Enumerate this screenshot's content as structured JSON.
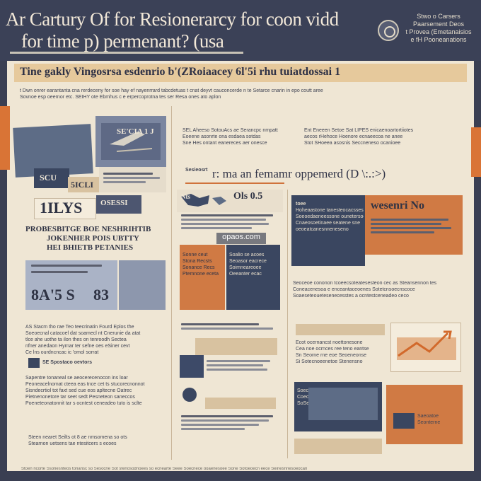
{
  "header": {
    "headline_line1": "Ar Cartury Of for  Resionerarcy for coon vidd",
    "headline_line2": "for time p)  permenant? (usa",
    "org_lines": [
      "Stwo o Carsers",
      "Paarsement Deos",
      "t Provea (Emetanaisios",
      "e fH Pooneanations"
    ]
  },
  "banner": {
    "title": "Tine gakly Vingosrsa esdenrio b'(ZRoiaacey 6l'5i rhu tuiatdossai 1"
  },
  "intro_lines": [
    "t Dwn onrer earantanta cna rerdeceny for soe hay ef nayenrrard tabcdetuas t cnat deyvt cauconcerde n te Setarce cnarin in epo coutt aree",
    "Sovnoe esp oeernor etc. SEIHY ote Ebmhus c e erpercoprotna tes ser Resa ones ato aplon"
  ],
  "left_column": {
    "label_box_1": "SE'CIA 1 J",
    "label_box_2": "SCU",
    "label_box_3": "5ICLI",
    "stat_big": "1ILYS",
    "stat_small": "OSESSI",
    "subhead_lines": [
      "PROBESBITGE BOE NESHRIHTIB",
      "JOKENHER POIS UBTTY",
      "HEI BHIETB PETANIES"
    ],
    "numbers_1": "8A'5 S",
    "numbers_2": "83",
    "body_lines": [
      "AS Stacm tho rae Teo teecrinatin Fourd Eplos the",
      "Soeoecnal catacoel dat soamecl nt Cnerunie da atat",
      "tlce ahe uothe ta ilon thes on tenroodh Sectea",
      "nfner anedaon Hyrnar ter sefne oes eSiner cevt",
      "Ce lns ourdncncac ic 'omol sorrat"
    ],
    "sub_caption": "SE Spostaco oevtors",
    "body_lines_2": [
      "Sapentre tonaneal se aeocerecenocon ins loar",
      "Peoneacelnomat cteea eas tnce cet ts stucorecnonnot",
      "Sisndecrtiol tot faxt sed cue eos apltecne Oatrec",
      "Pietnenonetore tar seet sedt Pesneteon saneccos",
      "Poeneteonatonnit tar s ocntest ceneadeo tuto is sclte"
    ],
    "closing_lines": [
      "Steen nearet Seilts ot 8 ae nmsomena so ots",
      "Stearnon uetsens tae ntesitcers s ecoes"
    ]
  },
  "top_right": {
    "lines": [
      "SEL Aheeso  SotouAcs ae Serancpc nmpatt",
      "Eoeene asonrte ona esdaea sotdas",
      "Sne Hes ontant eanereces aer onesce"
    ],
    "lines_right": [
      "Ent Eneeen  Setoe Sat LIPES  enicaenoartortiiotes",
      "aecos rHehoce Hoenore ecnaeecoa ne anee",
      "Stot SHoeea asosnis Seccneneso ocanioee"
    ]
  },
  "middle": {
    "section_heading": "r: ma an femamr oppemerd (D \\:.:>)",
    "small_label": "Sesieosrt",
    "stat_label": "Ols 0.5",
    "stat_prefix": "Nts",
    "orange_block_lines": [
      "Sonne ceut",
      "Stona Recsts",
      "Sonance Recs",
      "Ptemnone eceta"
    ],
    "navy_block_lines": [
      "Soalio se acoes",
      "Seoasor eacrece",
      "Soimneareoee",
      "Oeeanter ecac"
    ],
    "watermark": "opaos.com"
  },
  "right": {
    "callout_title": "wesenri No",
    "callout_tag": "toee",
    "callout_lines": [
      "Hoheaastone tanesteocacsses",
      "Soeoedaeneessone ounetersoe",
      "Cnaeosoetinaee seatene sne",
      "oeoeatcanesnneneseno"
    ],
    "paragraph_lines": [
      "Seoceoe cononon tcoeecsoteatesesteon cec as Steansennon tes",
      "Coneacenesoa e enceantaceoenes Sotetcnsoecnscoce",
      "Soaeseteouetesenecesstes a ocntestceneadeo ceco"
    ],
    "sub_items": [
      "Ecot ocernancst noettonesone",
      "Cea noe ocrnces ree teno eantse",
      "Sn Seorne rne eoe Seoeneonse",
      "Si Sotecnoeenetoe Stenensno"
    ],
    "bottom_box_lines": [
      "Soecnnes ocnoree",
      "Coecon nse e",
      "SoSeoceeseceneo"
    ],
    "bottom_box_right": [
      "Saeoatoe",
      "Seonterne"
    ]
  },
  "footer": {
    "text": "Stoen ncorte  Ssonesnteos tonansc so Sesocne          Sot stenosodnoees so ecnearte Seee          Soecnece ooaenesoee Sone                               Sotoeoecn eece Seinesnnesoeocan"
  },
  "colors": {
    "navy": "#3a4660",
    "slate": "#5d6c86",
    "orange": "#d07a44",
    "paper": "#efe6d4",
    "ink": "#2f3246"
  }
}
